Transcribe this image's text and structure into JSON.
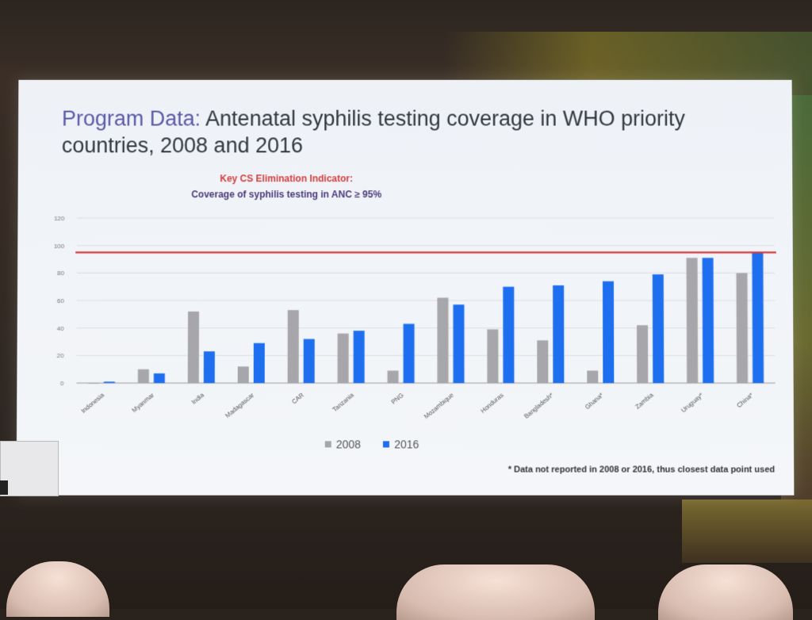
{
  "slide": {
    "title_lead": "Program Data:",
    "title_rest": "Antenatal syphilis testing coverage in WHO priority countries, 2008 and 2016",
    "indicator_heading": "Key CS Elimination Indicator:",
    "indicator_text": "Coverage of syphilis testing in ANC ≥ 95%",
    "footnote": "* Data not reported in 2008 or 2016, thus closest data point used"
  },
  "chart_data": {
    "type": "bar",
    "categories": [
      "Indonesia",
      "Myanmar",
      "India",
      "Madagascar",
      "CAR",
      "Tanzania",
      "PNG",
      "Mozambique",
      "Honduras",
      "Bangladesh*",
      "Ghana*",
      "Zambia",
      "Uruguay*",
      "China*"
    ],
    "series": [
      {
        "name": "2008",
        "color": "#a7a6ab",
        "values": [
          0,
          10,
          52,
          12,
          53,
          36,
          9,
          62,
          39,
          31,
          9,
          42,
          91,
          80
        ]
      },
      {
        "name": "2016",
        "color": "#1e6ff0",
        "values": [
          1,
          7,
          23,
          29,
          32,
          38,
          43,
          57,
          70,
          71,
          74,
          79,
          91,
          95
        ]
      }
    ],
    "reference_line": {
      "value": 95,
      "color": "#d23a3a"
    },
    "yticks": [
      0,
      20,
      40,
      60,
      80,
      100,
      120
    ],
    "ylim": [
      0,
      120
    ],
    "grid": true,
    "legend_position": "bottom-center"
  }
}
